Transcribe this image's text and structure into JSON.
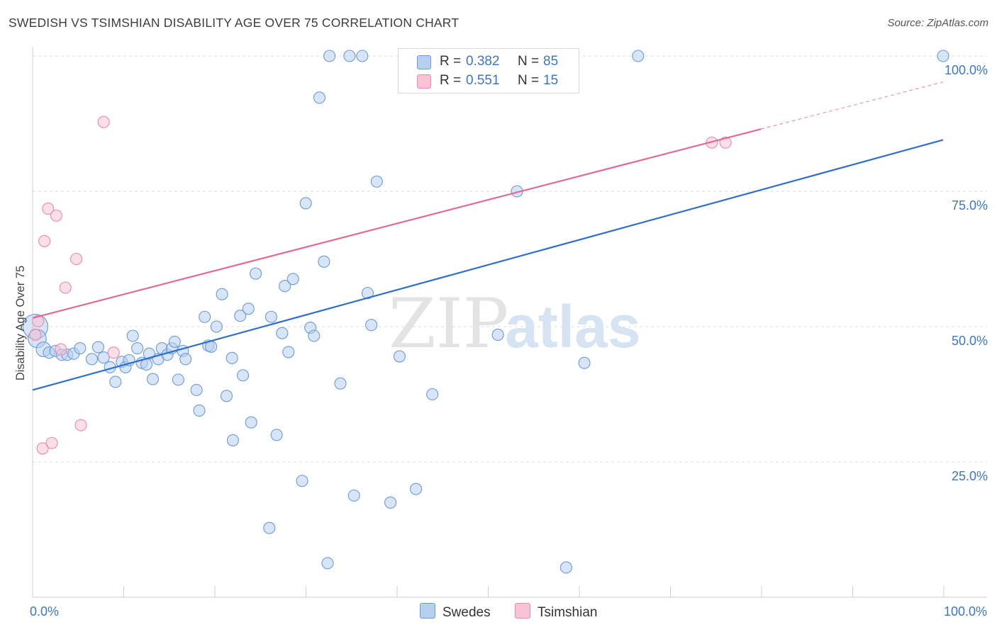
{
  "header": {
    "title": "SWEDISH VS TSIMSHIAN DISABILITY AGE OVER 75 CORRELATION CHART",
    "source": "Source: ZipAtlas.com"
  },
  "watermark": {
    "zip": "ZIP",
    "atlas": "atlas"
  },
  "legend": {
    "swedes": {
      "r_label": "R =",
      "r_value": "0.382",
      "n_label": "N =",
      "n_value": "85"
    },
    "tsimshian": {
      "r_label": "R =",
      "r_value": "0.551",
      "n_label": "N =",
      "n_value": "15"
    }
  },
  "bottom_legend": {
    "swedes": "Swedes",
    "tsimshian": "Tsimshian"
  },
  "chart_data": {
    "type": "scatter",
    "title": "SWEDISH VS TSIMSHIAN DISABILITY AGE OVER 75 CORRELATION CHART",
    "xlabel": "",
    "ylabel": "Disability Age Over 75",
    "xlim": [
      0,
      100
    ],
    "ylim": [
      0,
      102
    ],
    "x_tick_labels": [
      "0.0%",
      "100.0%"
    ],
    "y_tick_labels": [
      "25.0%",
      "50.0%",
      "75.0%",
      "100.0%"
    ],
    "y_ticks": [
      25,
      50,
      75,
      100
    ],
    "grid": true,
    "colors": {
      "swedes_fill": "#b8d0f0",
      "swedes_stroke": "#6a9ad8",
      "swedes_line": "#2f6fcb",
      "tsimshian_fill": "#f8c4d4",
      "tsimshian_stroke": "#e98aa8",
      "tsimshian_line": "#e26a94",
      "axis_label": "#3a76c9"
    },
    "series": [
      {
        "name": "Swedes",
        "R": 0.382,
        "N": 85,
        "trend": {
          "x": [
            0,
            100
          ],
          "y": [
            38.3,
            84.5
          ]
        },
        "points": [
          [
            0.3,
            50,
            2.2
          ],
          [
            0.5,
            47.8,
            1.6
          ],
          [
            1.2,
            45.8,
            1.3
          ],
          [
            1.8,
            45.2,
            1.0
          ],
          [
            2.5,
            45.5,
            1.0
          ],
          [
            3.2,
            44.8,
            1.0
          ],
          [
            3.8,
            44.8,
            1.0
          ],
          [
            4.5,
            45,
            1.0
          ],
          [
            5.2,
            46,
            1.0
          ],
          [
            6.5,
            44,
            1.0
          ],
          [
            7.2,
            46.2,
            1.0
          ],
          [
            7.8,
            44.3,
            1.0
          ],
          [
            8.5,
            42.5,
            1.0
          ],
          [
            9.1,
            39.8,
            1.0
          ],
          [
            9.8,
            43.5,
            1.0
          ],
          [
            10.2,
            42.5,
            1.0
          ],
          [
            10.6,
            43.8,
            1.0
          ],
          [
            11,
            48.3,
            1.0
          ],
          [
            11.5,
            46,
            1.0
          ],
          [
            12,
            43.3,
            1.0
          ],
          [
            12.5,
            43,
            1.0
          ],
          [
            12.8,
            45,
            1.0
          ],
          [
            13.2,
            40.3,
            1.0
          ],
          [
            13.8,
            44,
            1.0
          ],
          [
            14.2,
            46,
            1.0
          ],
          [
            14.8,
            44.8,
            1.0
          ],
          [
            15.3,
            46,
            1.0
          ],
          [
            15.6,
            47.2,
            1.0
          ],
          [
            16,
            40.2,
            1.0
          ],
          [
            16.5,
            45.5,
            1.0
          ],
          [
            16.8,
            44,
            1.0
          ],
          [
            18,
            38.3,
            1.0
          ],
          [
            18.3,
            34.5,
            1.0
          ],
          [
            18.9,
            51.8,
            1.0
          ],
          [
            19.3,
            46.5,
            1.0
          ],
          [
            19.6,
            46.3,
            1.0
          ],
          [
            20.2,
            50,
            1.0
          ],
          [
            20.8,
            56,
            1.0
          ],
          [
            21.3,
            37.2,
            1.0
          ],
          [
            21.9,
            44.2,
            1.0
          ],
          [
            22,
            29,
            1.0
          ],
          [
            22.8,
            52,
            1.0
          ],
          [
            23.1,
            41,
            1.0
          ],
          [
            23.7,
            53.3,
            1.0
          ],
          [
            24,
            32.3,
            1.0
          ],
          [
            24.5,
            59.8,
            1.0
          ],
          [
            26,
            12.8,
            1.0
          ],
          [
            26.2,
            51.8,
            1.0
          ],
          [
            26.8,
            30,
            1.0
          ],
          [
            27.4,
            48.8,
            1.0
          ],
          [
            27.7,
            57.5,
            1.0
          ],
          [
            28.1,
            45.3,
            1.0
          ],
          [
            28.6,
            58.8,
            1.0
          ],
          [
            29.6,
            21.5,
            1.0
          ],
          [
            30,
            72.8,
            1.0
          ],
          [
            30.5,
            49.8,
            1.0
          ],
          [
            30.9,
            48.3,
            1.0
          ],
          [
            31.5,
            92.3,
            1.0
          ],
          [
            32,
            62,
            1.0
          ],
          [
            32.4,
            6.3,
            1.0
          ],
          [
            32.6,
            100,
            1.0
          ],
          [
            33.8,
            39.5,
            1.0
          ],
          [
            34.8,
            100,
            1.0
          ],
          [
            35.3,
            18.8,
            1.0
          ],
          [
            36.2,
            100,
            1.0
          ],
          [
            36.8,
            56.2,
            1.0
          ],
          [
            37.2,
            50.3,
            1.0
          ],
          [
            37.8,
            76.8,
            1.0
          ],
          [
            39.3,
            17.5,
            1.0
          ],
          [
            40.3,
            44.5,
            1.0
          ],
          [
            42.1,
            20,
            1.0
          ],
          [
            42.3,
            100,
            1.0
          ],
          [
            43.9,
            37.5,
            1.0
          ],
          [
            44.9,
            100,
            1.0
          ],
          [
            51.1,
            48.5,
            1.0
          ],
          [
            53.2,
            75,
            1.0
          ],
          [
            54.2,
            100,
            1.0
          ],
          [
            58.6,
            5.5,
            1.0
          ],
          [
            60.6,
            43.3,
            1.0
          ],
          [
            66.5,
            100,
            1.0
          ],
          [
            100,
            100,
            1.0
          ]
        ]
      },
      {
        "name": "Tsimshian",
        "R": 0.551,
        "N": 15,
        "trend": {
          "x": [
            0,
            80
          ],
          "y": [
            51.6,
            86.5
          ],
          "dashed_extension_to": [
            100,
            95.2
          ]
        },
        "points": [
          [
            0.3,
            48.5,
            1.0
          ],
          [
            0.6,
            51,
            1.0
          ],
          [
            1.1,
            27.5,
            1.0
          ],
          [
            1.3,
            65.8,
            1.0
          ],
          [
            1.7,
            71.8,
            1.0
          ],
          [
            2.1,
            28.5,
            1.0
          ],
          [
            2.6,
            70.5,
            1.0
          ],
          [
            3.1,
            45.8,
            1.0
          ],
          [
            3.6,
            57.2,
            1.0
          ],
          [
            4.8,
            62.5,
            1.0
          ],
          [
            5.3,
            31.8,
            1.0
          ],
          [
            7.8,
            87.8,
            1.0
          ],
          [
            8.9,
            45.2,
            1.0
          ],
          [
            74.6,
            84,
            1.0
          ],
          [
            76.1,
            84,
            1.0
          ]
        ]
      }
    ]
  }
}
